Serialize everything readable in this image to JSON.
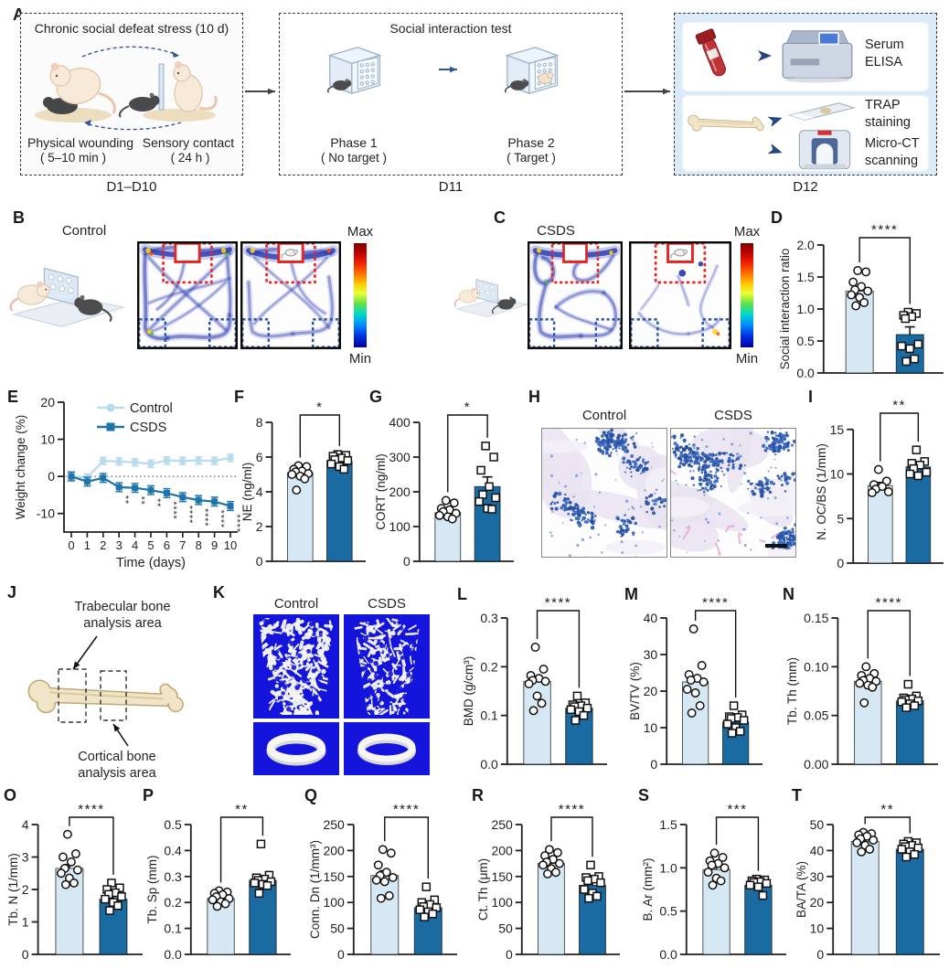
{
  "colors": {
    "control_fill": "#d6e8f4",
    "csds_fill": "#1a6ba2",
    "control_line": "#b9dbee",
    "csds_line": "#1e74ab",
    "axis": "#231f20",
    "sig": "#231f20",
    "micro_ct_bg": "#1414dc",
    "heat_trail": "#2634ad",
    "zone_red": "#e62520",
    "zone_blue": "#2753a8"
  },
  "panels": {
    "A": {
      "label": "A",
      "box1": {
        "title": "Chronic social defeat stress (10 d)",
        "left_label": "Physical wounding",
        "left_sub": "( 5–10 min )",
        "right_label": "Sensory contact",
        "right_sub": "( 24 h )",
        "caption": "D1–D10"
      },
      "box2": {
        "title": "Social interaction test",
        "phase1": "Phase 1",
        "phase1_sub": "( No target )",
        "phase2": "Phase 2",
        "phase2_sub": "( Target )",
        "caption": "D11"
      },
      "box3": {
        "item1": "Serum\nELISA",
        "item2": "TRAP\nstaining",
        "item3": "Micro-CT\nscanning",
        "caption": "D12"
      }
    },
    "B": {
      "label": "B",
      "title": "Control",
      "max": "Max",
      "min": "Min"
    },
    "C": {
      "label": "C",
      "title": "CSDS",
      "max": "Max",
      "min": "Min"
    },
    "D": {
      "label": "D"
    },
    "E": {
      "label": "E"
    },
    "F": {
      "label": "F"
    },
    "G": {
      "label": "G"
    },
    "H": {
      "label": "H",
      "left": "Control",
      "right": "CSDS"
    },
    "I": {
      "label": "I"
    },
    "J": {
      "label": "J",
      "trabecular": "Trabecular bone\nanalysis area",
      "cortical": "Cortical bone\nanalysis area"
    },
    "K": {
      "label": "K",
      "left": "Control",
      "right": "CSDS"
    },
    "L": {
      "label": "L"
    },
    "M": {
      "label": "M"
    },
    "N": {
      "label": "N"
    },
    "O": {
      "label": "O"
    },
    "P": {
      "label": "P"
    },
    "Q": {
      "label": "Q"
    },
    "R": {
      "label": "R"
    },
    "S": {
      "label": "S"
    },
    "T": {
      "label": "T"
    }
  },
  "chart_data": [
    {
      "id": "D",
      "type": "bar",
      "ylabel": "Social interaction ratio",
      "ylim": [
        0,
        2
      ],
      "yticks": [
        0,
        0.5,
        1,
        1.5,
        2
      ],
      "ytick_labels": [
        "0.0",
        "0.5",
        "1.0",
        "1.5",
        "2.0"
      ],
      "sig": "****",
      "groups": [
        {
          "name": "Control",
          "marker": "circle",
          "mean": 1.28,
          "sem": 0.07,
          "points": [
            1.6,
            1.58,
            1.42,
            1.35,
            1.3,
            1.28,
            1.22,
            1.18,
            1.1,
            1.05
          ]
        },
        {
          "name": "CSDS",
          "marker": "square",
          "mean": 0.6,
          "sem": 0.12,
          "points": [
            0.95,
            0.93,
            0.9,
            0.88,
            0.85,
            0.45,
            0.42,
            0.38,
            0.22,
            0.18
          ]
        }
      ]
    },
    {
      "id": "E",
      "type": "line",
      "ylabel": "Weight change (%)",
      "xlabel": "Time (days)",
      "ylim": [
        -15,
        20
      ],
      "yticks": [
        20,
        10,
        0,
        -10
      ],
      "ytick_labels": [
        "20",
        "10",
        "0",
        "-10"
      ],
      "x": [
        0,
        1,
        2,
        3,
        4,
        5,
        6,
        7,
        8,
        9,
        10
      ],
      "zero_line": true,
      "legend_position": "top",
      "series": [
        {
          "name": "Control",
          "marker": "circle",
          "err": 1.0,
          "values": [
            0,
            -0.3,
            4.2,
            4.0,
            3.8,
            3.4,
            4.3,
            4.2,
            4.3,
            4.2,
            5.0
          ]
        },
        {
          "name": "CSDS",
          "marker": "square",
          "err": 1.2,
          "values": [
            0,
            -1.4,
            -0.4,
            -2.9,
            -3.1,
            -3.7,
            -4.5,
            -5.6,
            -6.4,
            -6.8,
            -8.0
          ]
        }
      ],
      "sig_by_day": {
        "3": "**",
        "4": "**",
        "5": "**",
        "6": "****",
        "7": "****",
        "8": "****",
        "9": "****",
        "10": "****"
      }
    },
    {
      "id": "F",
      "type": "bar",
      "ylabel": "NE (ng/ml)",
      "ylim": [
        0,
        8
      ],
      "yticks": [
        0,
        2,
        4,
        6,
        8
      ],
      "ytick_labels": [
        "0",
        "2",
        "4",
        "6",
        "8"
      ],
      "sig": "*",
      "groups": [
        {
          "name": "Control",
          "marker": "circle",
          "mean": 5.1,
          "sem": 0.15,
          "points": [
            5.5,
            5.45,
            5.3,
            5.2,
            5.15,
            5.05,
            5.0,
            4.9,
            4.75,
            4.1
          ]
        },
        {
          "name": "CSDS",
          "marker": "square",
          "mean": 5.75,
          "sem": 0.12,
          "points": [
            6.15,
            6.1,
            6.05,
            5.95,
            5.85,
            5.8,
            5.6,
            5.45,
            5.3
          ]
        }
      ]
    },
    {
      "id": "G",
      "type": "bar",
      "ylabel": "CORT (ng/ml)",
      "ylim": [
        0,
        400
      ],
      "yticks": [
        0,
        100,
        200,
        300,
        400
      ],
      "ytick_labels": [
        "0",
        "100",
        "200",
        "300",
        "400"
      ],
      "sig": "*",
      "groups": [
        {
          "name": "Control",
          "marker": "circle",
          "mean": 140,
          "sem": 8,
          "points": [
            175,
            168,
            152,
            148,
            143,
            138,
            132,
            128,
            122
          ]
        },
        {
          "name": "CSDS",
          "marker": "square",
          "mean": 215,
          "sem": 28,
          "points": [
            332,
            300,
            262,
            215,
            192,
            183,
            172,
            152,
            150
          ]
        }
      ]
    },
    {
      "id": "I",
      "type": "bar",
      "ylabel": "N. OC/BS (1/mm)",
      "ylim": [
        0,
        16
      ],
      "yticks": [
        0,
        5,
        10,
        15
      ],
      "ytick_labels": [
        "0",
        "5",
        "10",
        "15"
      ],
      "sig": "**",
      "groups": [
        {
          "name": "Control",
          "marker": "circle",
          "mean": 8.7,
          "sem": 0.35,
          "points": [
            10.5,
            9.2,
            8.8,
            8.6,
            8.3,
            8.0,
            7.9
          ]
        },
        {
          "name": "CSDS",
          "marker": "square",
          "mean": 10.8,
          "sem": 0.3,
          "points": [
            12.7,
            11.4,
            11.2,
            11.0,
            10.6,
            10.2,
            10.0,
            9.8
          ]
        }
      ]
    },
    {
      "id": "L",
      "type": "bar",
      "ylabel": "BMD (g/cm³)",
      "ylim": [
        0,
        0.3
      ],
      "yticks": [
        0,
        0.1,
        0.2,
        0.3
      ],
      "ytick_labels": [
        "0.0",
        "0.1",
        "0.2",
        "0.3"
      ],
      "sig": "****",
      "groups": [
        {
          "name": "Control",
          "marker": "circle",
          "mean": 0.17,
          "sem": 0.008,
          "points": [
            0.24,
            0.195,
            0.182,
            0.176,
            0.172,
            0.17,
            0.165,
            0.14,
            0.125,
            0.11
          ]
        },
        {
          "name": "CSDS",
          "marker": "square",
          "mean": 0.115,
          "sem": 0.005,
          "points": [
            0.14,
            0.126,
            0.122,
            0.12,
            0.118,
            0.115,
            0.112,
            0.108,
            0.1,
            0.09
          ]
        }
      ]
    },
    {
      "id": "M",
      "type": "bar",
      "ylabel": "BV/TV (%)",
      "ylim": [
        0,
        40
      ],
      "yticks": [
        0,
        10,
        20,
        30,
        40
      ],
      "ytick_labels": [
        "0",
        "10",
        "20",
        "30",
        "40"
      ],
      "sig": "****",
      "groups": [
        {
          "name": "Control",
          "marker": "circle",
          "mean": 22.5,
          "sem": 1.5,
          "points": [
            37,
            27,
            24.5,
            23.5,
            23,
            22.5,
            20.5,
            19.5,
            16,
            14
          ]
        },
        {
          "name": "CSDS",
          "marker": "square",
          "mean": 11.5,
          "sem": 0.8,
          "points": [
            16,
            13.5,
            13,
            12.8,
            12.5,
            12,
            11,
            10,
            9,
            8.5
          ]
        }
      ]
    },
    {
      "id": "N",
      "type": "bar",
      "ylabel": "Tb. Th (mm)",
      "ylim": [
        0,
        0.15
      ],
      "yticks": [
        0,
        0.05,
        0.1,
        0.15
      ],
      "ytick_labels": [
        "0.00",
        "0.05",
        "0.10",
        "0.15"
      ],
      "sig": "****",
      "groups": [
        {
          "name": "Control",
          "marker": "circle",
          "mean": 0.085,
          "sem": 0.003,
          "points": [
            0.1,
            0.093,
            0.091,
            0.088,
            0.086,
            0.085,
            0.083,
            0.081,
            0.079,
            0.063
          ]
        },
        {
          "name": "CSDS",
          "marker": "square",
          "mean": 0.065,
          "sem": 0.002,
          "points": [
            0.082,
            0.07,
            0.068,
            0.067,
            0.066,
            0.065,
            0.064,
            0.062,
            0.06,
            0.058
          ]
        }
      ]
    },
    {
      "id": "O",
      "type": "bar",
      "ylabel": "Tb. N (1/mm)",
      "ylim": [
        0,
        4
      ],
      "yticks": [
        0,
        1,
        2,
        3,
        4
      ],
      "ytick_labels": [
        "0",
        "1",
        "2",
        "3",
        "4"
      ],
      "sig": "****",
      "groups": [
        {
          "name": "Control",
          "marker": "circle",
          "mean": 2.65,
          "sem": 0.12,
          "points": [
            3.7,
            3.1,
            3.0,
            2.85,
            2.65,
            2.6,
            2.5,
            2.35,
            2.2,
            2.15
          ]
        },
        {
          "name": "CSDS",
          "marker": "square",
          "mean": 1.7,
          "sem": 0.08,
          "points": [
            2.2,
            2.05,
            2.0,
            1.9,
            1.85,
            1.78,
            1.7,
            1.6,
            1.5,
            1.35
          ]
        }
      ]
    },
    {
      "id": "P",
      "type": "bar",
      "ylabel": "Tb. Sp (mm)",
      "ylim": [
        0,
        0.5
      ],
      "yticks": [
        0,
        0.1,
        0.2,
        0.3,
        0.4,
        0.5
      ],
      "ytick_labels": [
        "0.0",
        "0.1",
        "0.2",
        "0.3",
        "0.4",
        "0.5"
      ],
      "sig": "**",
      "groups": [
        {
          "name": "Control",
          "marker": "circle",
          "mean": 0.215,
          "sem": 0.007,
          "points": [
            0.245,
            0.24,
            0.235,
            0.23,
            0.222,
            0.215,
            0.21,
            0.202,
            0.195,
            0.185
          ]
        },
        {
          "name": "CSDS",
          "marker": "square",
          "mean": 0.285,
          "sem": 0.012,
          "points": [
            0.425,
            0.305,
            0.295,
            0.29,
            0.285,
            0.28,
            0.275,
            0.27,
            0.265,
            0.235
          ]
        }
      ]
    },
    {
      "id": "Q",
      "type": "bar",
      "ylabel": "Conn. Dn (1/mm³)",
      "ylim": [
        0,
        250
      ],
      "yticks": [
        0,
        50,
        100,
        150,
        200,
        250
      ],
      "ytick_labels": [
        "0",
        "50",
        "100",
        "150",
        "200",
        "250"
      ],
      "sig": "****",
      "groups": [
        {
          "name": "Control",
          "marker": "circle",
          "mean": 152,
          "sem": 9,
          "points": [
            202,
            195,
            172,
            158,
            152,
            148,
            143,
            140,
            113,
            108
          ]
        },
        {
          "name": "CSDS",
          "marker": "square",
          "mean": 90,
          "sem": 5,
          "points": [
            130,
            105,
            100,
            96,
            92,
            90,
            86,
            82,
            78,
            72
          ]
        }
      ]
    },
    {
      "id": "R",
      "type": "bar",
      "ylabel": "Ct. Th (μm)",
      "ylim": [
        0,
        250
      ],
      "yticks": [
        0,
        50,
        100,
        150,
        200,
        250
      ],
      "ytick_labels": [
        "0",
        "50",
        "100",
        "150",
        "200",
        "250"
      ],
      "sig": "****",
      "groups": [
        {
          "name": "Control",
          "marker": "circle",
          "mean": 175,
          "sem": 5,
          "points": [
            202,
            196,
            190,
            183,
            178,
            175,
            172,
            165,
            158,
            155
          ]
        },
        {
          "name": "CSDS",
          "marker": "square",
          "mean": 133,
          "sem": 6,
          "points": [
            172,
            150,
            148,
            145,
            142,
            138,
            125,
            118,
            112,
            108
          ]
        }
      ]
    },
    {
      "id": "S",
      "type": "bar",
      "ylabel": "B. Ar (mm²)",
      "ylim": [
        0,
        1.5
      ],
      "yticks": [
        0,
        0.5,
        1,
        1.5
      ],
      "ytick_labels": [
        "0.0",
        "0.5",
        "1.0",
        "1.5"
      ],
      "sig": "***",
      "groups": [
        {
          "name": "Control",
          "marker": "circle",
          "mean": 0.98,
          "sem": 0.04,
          "points": [
            1.17,
            1.12,
            1.08,
            1.05,
            1.03,
            1.0,
            0.95,
            0.88,
            0.85,
            0.8
          ]
        },
        {
          "name": "CSDS",
          "marker": "square",
          "mean": 0.8,
          "sem": 0.02,
          "points": [
            0.87,
            0.86,
            0.85,
            0.84,
            0.83,
            0.82,
            0.8,
            0.78,
            0.68
          ]
        }
      ]
    },
    {
      "id": "T",
      "type": "bar",
      "ylabel": "BA/TA (%)",
      "ylim": [
        0,
        50
      ],
      "yticks": [
        0,
        10,
        20,
        30,
        40,
        50
      ],
      "ytick_labels": [
        "0",
        "10",
        "20",
        "30",
        "40",
        "50"
      ],
      "sig": "**",
      "groups": [
        {
          "name": "Control",
          "marker": "circle",
          "mean": 43.5,
          "sem": 0.8,
          "points": [
            47,
            46.5,
            46,
            45.5,
            44.5,
            44,
            43,
            42,
            40.5,
            39.5
          ]
        },
        {
          "name": "CSDS",
          "marker": "square",
          "mean": 40.5,
          "sem": 0.6,
          "points": [
            43.5,
            43,
            42.5,
            42,
            41.5,
            41,
            40.5,
            39.5,
            38.5,
            37.5
          ]
        }
      ]
    }
  ]
}
